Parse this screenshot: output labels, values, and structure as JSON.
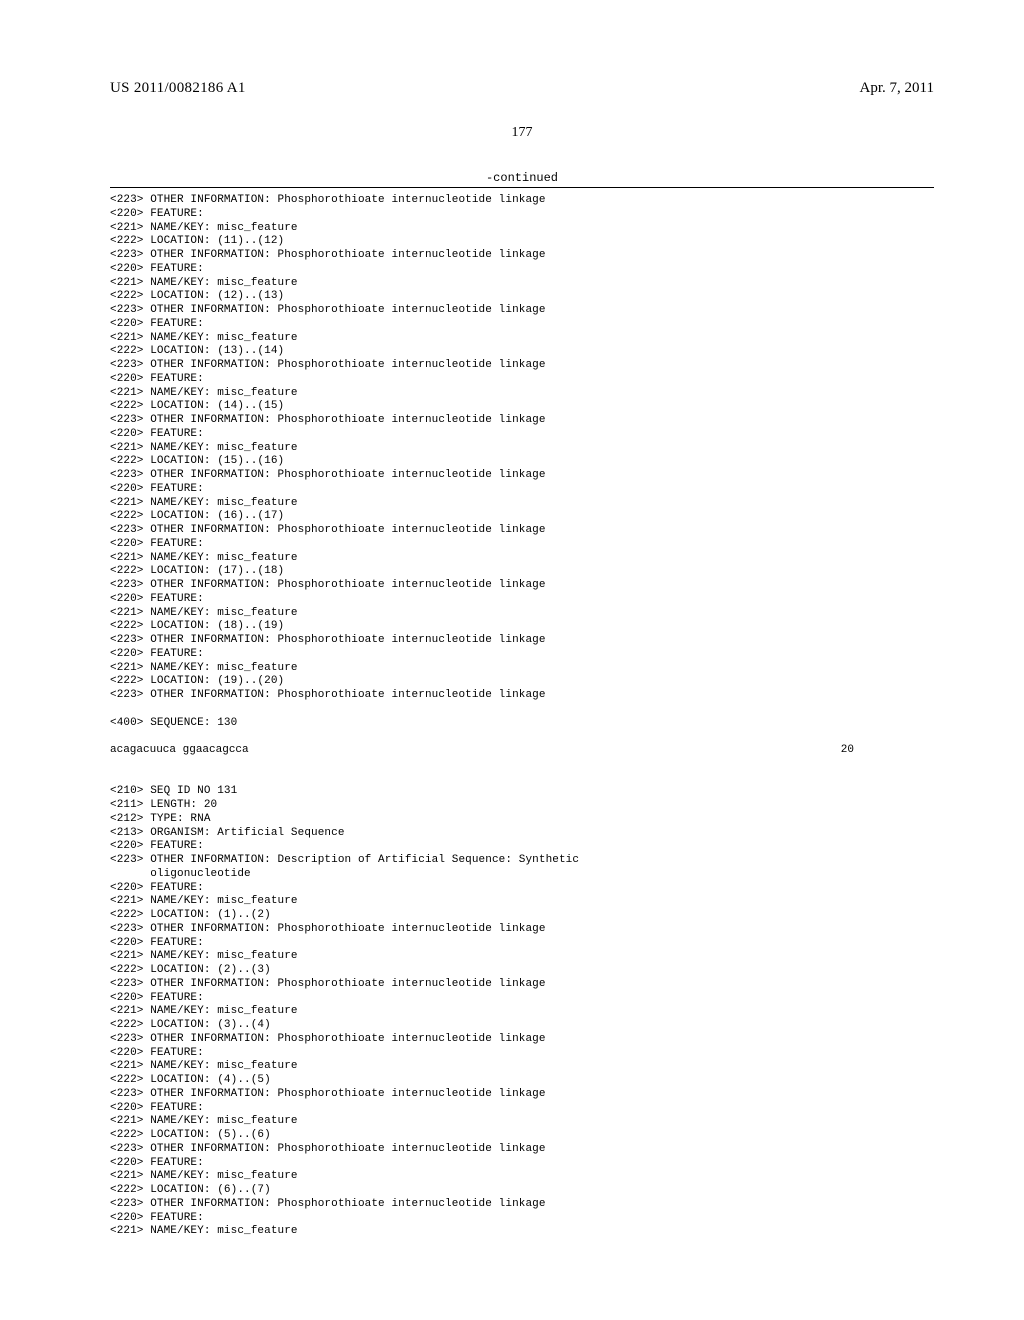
{
  "header": {
    "pub_number": "US 2011/0082186 A1",
    "pub_date": "Apr. 7, 2011",
    "page_number": "177",
    "continued_label": "-continued"
  },
  "colors": {
    "background": "#ffffff",
    "text": "#000000",
    "rule": "#000000"
  },
  "typography": {
    "serif_family": "Times New Roman",
    "mono_family": "Courier New",
    "header_fontsize_pt": 11,
    "page_number_fontsize_pt": 10,
    "listing_fontsize_pt": 8,
    "listing_line_height": 1.25
  },
  "sequence_row": {
    "sequence": "acagacuuca ggaacagcca",
    "length": "20"
  },
  "lines": [
    "<223> OTHER INFORMATION: Phosphorothioate internucleotide linkage",
    "<220> FEATURE:",
    "<221> NAME/KEY: misc_feature",
    "<222> LOCATION: (11)..(12)",
    "<223> OTHER INFORMATION: Phosphorothioate internucleotide linkage",
    "<220> FEATURE:",
    "<221> NAME/KEY: misc_feature",
    "<222> LOCATION: (12)..(13)",
    "<223> OTHER INFORMATION: Phosphorothioate internucleotide linkage",
    "<220> FEATURE:",
    "<221> NAME/KEY: misc_feature",
    "<222> LOCATION: (13)..(14)",
    "<223> OTHER INFORMATION: Phosphorothioate internucleotide linkage",
    "<220> FEATURE:",
    "<221> NAME/KEY: misc_feature",
    "<222> LOCATION: (14)..(15)",
    "<223> OTHER INFORMATION: Phosphorothioate internucleotide linkage",
    "<220> FEATURE:",
    "<221> NAME/KEY: misc_feature",
    "<222> LOCATION: (15)..(16)",
    "<223> OTHER INFORMATION: Phosphorothioate internucleotide linkage",
    "<220> FEATURE:",
    "<221> NAME/KEY: misc_feature",
    "<222> LOCATION: (16)..(17)",
    "<223> OTHER INFORMATION: Phosphorothioate internucleotide linkage",
    "<220> FEATURE:",
    "<221> NAME/KEY: misc_feature",
    "<222> LOCATION: (17)..(18)",
    "<223> OTHER INFORMATION: Phosphorothioate internucleotide linkage",
    "<220> FEATURE:",
    "<221> NAME/KEY: misc_feature",
    "<222> LOCATION: (18)..(19)",
    "<223> OTHER INFORMATION: Phosphorothioate internucleotide linkage",
    "<220> FEATURE:",
    "<221> NAME/KEY: misc_feature",
    "<222> LOCATION: (19)..(20)",
    "<223> OTHER INFORMATION: Phosphorothioate internucleotide linkage",
    "",
    "<400> SEQUENCE: 130",
    "",
    "__SEQROW__",
    "",
    "",
    "<210> SEQ ID NO 131",
    "<211> LENGTH: 20",
    "<212> TYPE: RNA",
    "<213> ORGANISM: Artificial Sequence",
    "<220> FEATURE:",
    "<223> OTHER INFORMATION: Description of Artificial Sequence: Synthetic",
    "      oligonucleotide",
    "<220> FEATURE:",
    "<221> NAME/KEY: misc_feature",
    "<222> LOCATION: (1)..(2)",
    "<223> OTHER INFORMATION: Phosphorothioate internucleotide linkage",
    "<220> FEATURE:",
    "<221> NAME/KEY: misc_feature",
    "<222> LOCATION: (2)..(3)",
    "<223> OTHER INFORMATION: Phosphorothioate internucleotide linkage",
    "<220> FEATURE:",
    "<221> NAME/KEY: misc_feature",
    "<222> LOCATION: (3)..(4)",
    "<223> OTHER INFORMATION: Phosphorothioate internucleotide linkage",
    "<220> FEATURE:",
    "<221> NAME/KEY: misc_feature",
    "<222> LOCATION: (4)..(5)",
    "<223> OTHER INFORMATION: Phosphorothioate internucleotide linkage",
    "<220> FEATURE:",
    "<221> NAME/KEY: misc_feature",
    "<222> LOCATION: (5)..(6)",
    "<223> OTHER INFORMATION: Phosphorothioate internucleotide linkage",
    "<220> FEATURE:",
    "<221> NAME/KEY: misc_feature",
    "<222> LOCATION: (6)..(7)",
    "<223> OTHER INFORMATION: Phosphorothioate internucleotide linkage",
    "<220> FEATURE:",
    "<221> NAME/KEY: misc_feature"
  ]
}
